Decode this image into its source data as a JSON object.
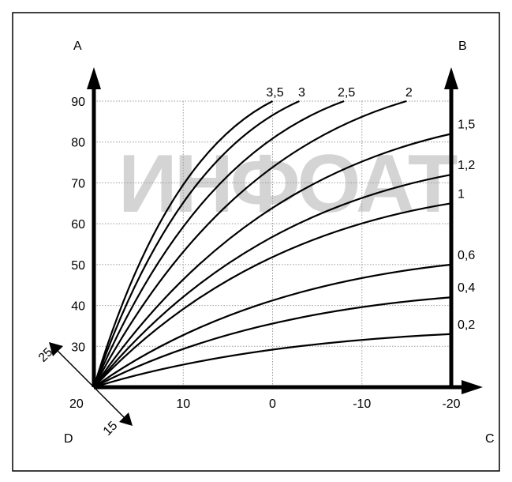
{
  "chart_data": {
    "type": "line",
    "watermark": "ИНФОАТ",
    "corner_labels": {
      "a": "A",
      "b": "B",
      "c": "C",
      "d": "D"
    },
    "origin_label": "20",
    "diag_labels": {
      "up": "25",
      "down": "15"
    },
    "x_axis": {
      "ticks": [
        10,
        0,
        -10,
        -20
      ],
      "tick_labels": [
        "10",
        "0",
        "-10",
        "-20"
      ],
      "range": [
        20,
        -20
      ]
    },
    "y_axis": {
      "ticks": [
        30,
        40,
        50,
        60,
        70,
        80,
        90
      ],
      "tick_labels": [
        "30",
        "40",
        "50",
        "60",
        "70",
        "80",
        "90"
      ],
      "range": [
        20,
        90
      ]
    },
    "series": [
      {
        "name": "3,5",
        "end_x": 0,
        "end_y": 90
      },
      {
        "name": "3",
        "end_x": -3,
        "end_y": 90
      },
      {
        "name": "2,5",
        "end_x": -8,
        "end_y": 90
      },
      {
        "name": "2",
        "end_x": -15,
        "end_y": 90
      },
      {
        "name": "1,5",
        "end_x": -20,
        "end_y": 82
      },
      {
        "name": "1,2",
        "end_x": -20,
        "end_y": 72
      },
      {
        "name": "1",
        "end_x": -20,
        "end_y": 65
      },
      {
        "name": "0,6",
        "end_x": -20,
        "end_y": 50
      },
      {
        "name": "0,4",
        "end_x": -20,
        "end_y": 42
      },
      {
        "name": "0,2",
        "end_x": -20,
        "end_y": 33
      }
    ]
  }
}
